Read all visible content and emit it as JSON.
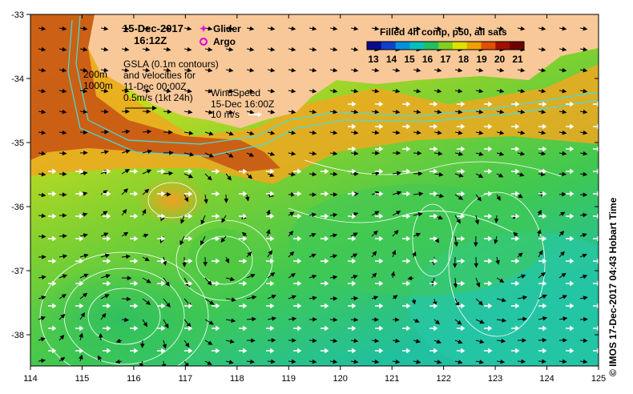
{
  "title": {
    "date": "15-Dec-2017",
    "time": "16:12Z"
  },
  "legend_symbols": [
    {
      "label": "Glider",
      "color": "#e000e0"
    },
    {
      "label": "Argo",
      "color": "#e000e0"
    }
  ],
  "gsla_note": {
    "line1": "GSLA (0.1m contours)",
    "line2": "and velocities for",
    "line3": "11-Dec 00:00Z",
    "line4": "0.5m/s (1kt 24h)"
  },
  "isobaths": {
    "shallow": "200m",
    "deep": "1000m"
  },
  "wind_note": {
    "line1": "WindSpeed",
    "line2": "15-Dec 16:00Z",
    "line3": "10 m/s"
  },
  "colorbar": {
    "title": "Filled 4h comp, p50, all sats",
    "ticks": [
      "13",
      "14",
      "15",
      "16",
      "17",
      "18",
      "19",
      "20",
      "21"
    ],
    "colors": [
      "#0a0a8c",
      "#1040d0",
      "#0090e0",
      "#00c0c0",
      "#20c060",
      "#80d020",
      "#e0e000",
      "#f0a000",
      "#e05000",
      "#a01000",
      "#700000"
    ]
  },
  "axes": {
    "lon_ticks": [
      "114",
      "115",
      "116",
      "117",
      "118",
      "119",
      "120",
      "121",
      "122",
      "123",
      "124",
      "125"
    ],
    "lat_ticks": [
      "-33",
      "-34",
      "-35",
      "-36",
      "-37",
      "-38"
    ]
  },
  "credit": "© IMOS 17-Dec-2017 04:43 Hobart Time",
  "colors": {
    "land": "#f8c898",
    "cold": "#18c8a0",
    "mid": "#70d030",
    "warm": "#e8e020",
    "hot": "#f0a010",
    "coast": "#c05010"
  }
}
